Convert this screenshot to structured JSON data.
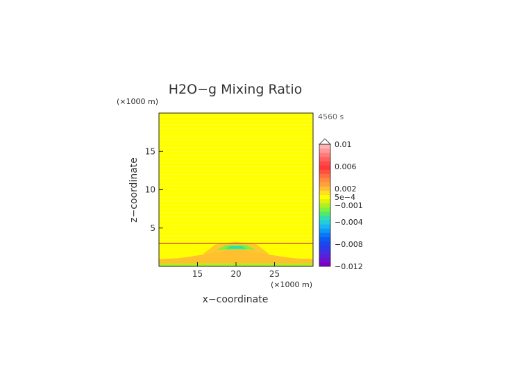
{
  "chart_data": {
    "type": "heatmap",
    "title": "H2O−g Mixing Ratio",
    "time_label": "4560 s",
    "xlabel": "x−coordinate",
    "ylabel": "z−coordinate",
    "x_unit": "(×1000 m)",
    "y_unit": "(×1000 m)",
    "xlim": [
      10,
      30
    ],
    "ylim": [
      0,
      20
    ],
    "x_ticks": [
      {
        "value": 15,
        "label": "15"
      },
      {
        "value": 20,
        "label": "20"
      },
      {
        "value": 25,
        "label": "25"
      }
    ],
    "y_ticks": [
      {
        "value": 5,
        "label": "5"
      },
      {
        "value": 10,
        "label": "10"
      },
      {
        "value": 15,
        "label": "15"
      }
    ],
    "colorbar": {
      "range": [
        -0.012,
        0.01
      ],
      "extend": "max",
      "colors": [
        "#7a00c8",
        "#6f10d0",
        "#5a1fd8",
        "#4030e0",
        "#2a3ae8",
        "#1848f0",
        "#0a5cf2",
        "#0a78f4",
        "#1098f6",
        "#18b4f4",
        "#22ccdc",
        "#30dcb0",
        "#50e870",
        "#80f040",
        "#b0f020",
        "#e0f010",
        "#ffff00",
        "#ffe020",
        "#ffc030",
        "#ffa040",
        "#ff8c3c",
        "#ff7040",
        "#ff5040",
        "#ff3838",
        "#ff4848",
        "#ff6060",
        "#ff7a7a",
        "#ff9898",
        "#ffb4b4"
      ],
      "tick_labels": [
        {
          "value": 0.01,
          "label": "0.01"
        },
        {
          "value": 0.006,
          "label": "0.006"
        },
        {
          "value": 0.002,
          "label": "0.002"
        },
        {
          "value": 0.0005,
          "label": "5e−4"
        },
        {
          "value": -0.001,
          "label": "−0.001"
        },
        {
          "value": -0.004,
          "label": "−0.004"
        },
        {
          "value": -0.008,
          "label": "−0.008"
        },
        {
          "value": -0.012,
          "label": "−0.012"
        }
      ]
    },
    "field": {
      "background_value": 0.0003,
      "features": [
        {
          "name": "inversion-line",
          "z": 3.0,
          "value": 0.003
        },
        {
          "name": "boundary-layer-orange",
          "x_range": [
            10,
            30
          ],
          "z_range": [
            0.4,
            1.6
          ],
          "value": 0.0022
        },
        {
          "name": "central-plume",
          "x_center": 20,
          "z_range": [
            1.6,
            3.2
          ],
          "value": 0.0018
        },
        {
          "name": "central-cold-core",
          "x_center": 20,
          "z_range": [
            2.2,
            2.8
          ],
          "value": -0.003
        },
        {
          "name": "surface-green-band",
          "x_range": [
            10,
            30
          ],
          "z_range": [
            0,
            0.4
          ],
          "value": -0.0012
        }
      ]
    }
  }
}
